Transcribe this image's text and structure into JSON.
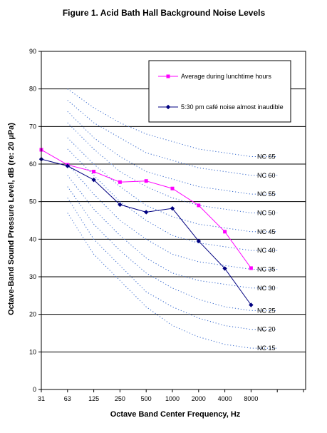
{
  "chart_data": {
    "type": "line",
    "title": "Figure 1. Acid Bath Hall Background Noise Levels",
    "xlabel": "Octave Band Center Frequency, Hz",
    "ylabel": "Octave-Band Sound Pressure Level, dB (re: 20 µPa)",
    "categories": [
      "31",
      "63",
      "125",
      "250",
      "500",
      "1000",
      "2000",
      "4000",
      "8000"
    ],
    "ylim": [
      0,
      90
    ],
    "yticks": [
      0,
      10,
      20,
      30,
      40,
      50,
      60,
      70,
      80,
      90
    ],
    "grid": "horizontal",
    "legend_position": "top-right",
    "series": [
      {
        "name": "Average during lunchtime hours",
        "color": "#ff00ff",
        "marker": "square",
        "values": [
          63.8,
          59.8,
          58.0,
          55.2,
          55.5,
          53.5,
          49.0,
          42.0,
          32.3
        ]
      },
      {
        "name": "5:30 pm café noise almost inaudible",
        "color": "#000080",
        "marker": "diamond",
        "values": [
          61.3,
          59.5,
          55.8,
          49.2,
          47.2,
          48.2,
          39.5,
          32.2,
          22.5
        ]
      }
    ],
    "nc_curves": {
      "color": "#3366cc",
      "style": "dotted",
      "curves": [
        {
          "label": "NC 65",
          "values": [
            80,
            75,
            71,
            68,
            66,
            64,
            63,
            62,
            62
          ]
        },
        {
          "label": "NC 60",
          "values": [
            77,
            71,
            67,
            63,
            61,
            59,
            58,
            57,
            57
          ]
        },
        {
          "label": "NC 55",
          "values": [
            74,
            67,
            62,
            58,
            56,
            54,
            53,
            52,
            52
          ]
        },
        {
          "label": "NC 50",
          "values": [
            71,
            64,
            58,
            54,
            51,
            49,
            48,
            47,
            47
          ]
        },
        {
          "label": "NC 45",
          "values": [
            67,
            60,
            54,
            49,
            46,
            44,
            43,
            42,
            42
          ]
        },
        {
          "label": "NC 40",
          "values": [
            64,
            57,
            50,
            45,
            41,
            39,
            38,
            37,
            37
          ]
        },
        {
          "label": "NC 35",
          "values": [
            60,
            52,
            45,
            40,
            36,
            34,
            33,
            32,
            32
          ]
        },
        {
          "label": "NC 30",
          "values": [
            57,
            48,
            41,
            35,
            31,
            29,
            28,
            27,
            27
          ]
        },
        {
          "label": "NC 25",
          "values": [
            54,
            44,
            37,
            31,
            27,
            24,
            22,
            21,
            21
          ]
        },
        {
          "label": "NC 20",
          "values": [
            51,
            40,
            33,
            26,
            22,
            19,
            17,
            16,
            16
          ]
        },
        {
          "label": "NC 15",
          "values": [
            47,
            36,
            29,
            22,
            17,
            14,
            12,
            11,
            11
          ]
        }
      ]
    }
  }
}
